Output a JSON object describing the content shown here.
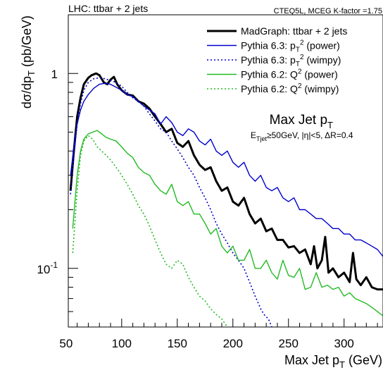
{
  "header": {
    "left": "LHC: ttbar + 2 jets",
    "right": "CTEQ5L, MCEG K-factor =1.75"
  },
  "annotation": {
    "title": "Max Jet p",
    "title_sub": "T",
    "subtitle_prefix": "E",
    "subtitle_sub": "Tjet",
    "subtitle_rest": "≥50GeV, |η|<5, ΔR=0.4"
  },
  "chart_data": {
    "type": "line",
    "xlabel": "Max Jet p",
    "xlabel_sub": "T",
    "xlabel_unit": " (GeV)",
    "ylabel": "dσ/dp",
    "ylabel_sub": "T",
    "ylabel_unit": " (pb/GeV)",
    "xlim": [
      52,
      335
    ],
    "ylim": [
      0.05,
      2.0
    ],
    "yscale": "log",
    "x_ticks": [
      50,
      100,
      150,
      200,
      250,
      300
    ],
    "y_ticks": [
      {
        "value": 1,
        "label": "1",
        "exp": ""
      },
      {
        "value": 0.1,
        "label": "10",
        "exp": "-1"
      }
    ],
    "legend_position": "top-right",
    "series": [
      {
        "name": "MadGraph: ttbar + 2 jets",
        "name_parts": [
          "MadGraph: ttbar + 2 jets"
        ],
        "color": "#000000",
        "width": 3,
        "dash": "",
        "points": [
          [
            54,
            0.25
          ],
          [
            57,
            0.4
          ],
          [
            60,
            0.6
          ],
          [
            63,
            0.75
          ],
          [
            66,
            0.88
          ],
          [
            70,
            0.95
          ],
          [
            73,
            0.98
          ],
          [
            77,
            1.0
          ],
          [
            80,
            0.98
          ],
          [
            84,
            0.9
          ],
          [
            87,
            0.88
          ],
          [
            90,
            0.93
          ],
          [
            93,
            0.96
          ],
          [
            96,
            0.88
          ],
          [
            100,
            0.82
          ],
          [
            105,
            0.78
          ],
          [
            110,
            0.77
          ],
          [
            115,
            0.72
          ],
          [
            120,
            0.7
          ],
          [
            125,
            0.66
          ],
          [
            130,
            0.6
          ],
          [
            135,
            0.55
          ],
          [
            140,
            0.5
          ],
          [
            145,
            0.52
          ],
          [
            150,
            0.44
          ],
          [
            155,
            0.42
          ],
          [
            160,
            0.45
          ],
          [
            165,
            0.38
          ],
          [
            170,
            0.34
          ],
          [
            175,
            0.32
          ],
          [
            180,
            0.33
          ],
          [
            185,
            0.28
          ],
          [
            190,
            0.25
          ],
          [
            195,
            0.26
          ],
          [
            200,
            0.22
          ],
          [
            205,
            0.21
          ],
          [
            210,
            0.23
          ],
          [
            215,
            0.19
          ],
          [
            220,
            0.17
          ],
          [
            225,
            0.18
          ],
          [
            230,
            0.155
          ],
          [
            235,
            0.16
          ],
          [
            240,
            0.14
          ],
          [
            245,
            0.14
          ],
          [
            250,
            0.128
          ],
          [
            255,
            0.13
          ],
          [
            260,
            0.12
          ],
          [
            265,
            0.125
          ],
          [
            270,
            0.105
          ],
          [
            273,
            0.13
          ],
          [
            276,
            0.1
          ],
          [
            280,
            0.11
          ],
          [
            283,
            0.145
          ],
          [
            286,
            0.095
          ],
          [
            290,
            0.1
          ],
          [
            295,
            0.09
          ],
          [
            300,
            0.095
          ],
          [
            305,
            0.085
          ],
          [
            308,
            0.12
          ],
          [
            311,
            0.088
          ],
          [
            315,
            0.082
          ],
          [
            320,
            0.09
          ],
          [
            325,
            0.08
          ],
          [
            330,
            0.078
          ],
          [
            335,
            0.078
          ]
        ]
      },
      {
        "name": "Pythia 6.3: pT2 (power)",
        "name_parts": [
          "Pythia 6.3: p",
          "T",
          "2",
          " (power)"
        ],
        "color": "#0000cc",
        "width": 1.4,
        "dash": "",
        "points": [
          [
            54,
            0.3
          ],
          [
            57,
            0.42
          ],
          [
            60,
            0.55
          ],
          [
            63,
            0.65
          ],
          [
            66,
            0.72
          ],
          [
            70,
            0.78
          ],
          [
            75,
            0.84
          ],
          [
            80,
            0.88
          ],
          [
            85,
            0.89
          ],
          [
            90,
            0.88
          ],
          [
            95,
            0.85
          ],
          [
            100,
            0.82
          ],
          [
            105,
            0.78
          ],
          [
            110,
            0.76
          ],
          [
            115,
            0.72
          ],
          [
            120,
            0.68
          ],
          [
            125,
            0.65
          ],
          [
            130,
            0.62
          ],
          [
            135,
            0.55
          ],
          [
            140,
            0.6
          ],
          [
            145,
            0.56
          ],
          [
            150,
            0.5
          ],
          [
            155,
            0.48
          ],
          [
            160,
            0.52
          ],
          [
            165,
            0.5
          ],
          [
            170,
            0.45
          ],
          [
            175,
            0.43
          ],
          [
            180,
            0.46
          ],
          [
            185,
            0.4
          ],
          [
            190,
            0.38
          ],
          [
            195,
            0.4
          ],
          [
            200,
            0.35
          ],
          [
            205,
            0.33
          ],
          [
            210,
            0.35
          ],
          [
            215,
            0.3
          ],
          [
            220,
            0.28
          ],
          [
            225,
            0.3
          ],
          [
            230,
            0.26
          ],
          [
            235,
            0.25
          ],
          [
            240,
            0.26
          ],
          [
            245,
            0.23
          ],
          [
            250,
            0.22
          ],
          [
            255,
            0.23
          ],
          [
            260,
            0.2
          ],
          [
            265,
            0.2
          ],
          [
            270,
            0.19
          ],
          [
            275,
            0.18
          ],
          [
            280,
            0.18
          ],
          [
            285,
            0.17
          ],
          [
            290,
            0.16
          ],
          [
            295,
            0.16
          ],
          [
            300,
            0.15
          ],
          [
            305,
            0.15
          ],
          [
            310,
            0.14
          ],
          [
            315,
            0.14
          ],
          [
            320,
            0.135
          ],
          [
            325,
            0.13
          ],
          [
            330,
            0.125
          ],
          [
            335,
            0.115
          ]
        ]
      },
      {
        "name": "Pythia 6.3: pT2 (wimpy)",
        "name_parts": [
          "Pythia 6.3: p",
          "T",
          "2",
          " (wimpy)"
        ],
        "color": "#0000cc",
        "width": 1.6,
        "dash": "2,3",
        "points": [
          [
            54,
            0.24
          ],
          [
            57,
            0.38
          ],
          [
            60,
            0.55
          ],
          [
            63,
            0.7
          ],
          [
            66,
            0.82
          ],
          [
            70,
            0.9
          ],
          [
            75,
            0.94
          ],
          [
            80,
            0.95
          ],
          [
            85,
            0.94
          ],
          [
            90,
            0.92
          ],
          [
            95,
            0.9
          ],
          [
            100,
            0.86
          ],
          [
            105,
            0.8
          ],
          [
            110,
            0.75
          ],
          [
            115,
            0.72
          ],
          [
            120,
            0.68
          ],
          [
            125,
            0.62
          ],
          [
            130,
            0.57
          ],
          [
            135,
            0.52
          ],
          [
            140,
            0.5
          ],
          [
            145,
            0.45
          ],
          [
            150,
            0.41
          ],
          [
            155,
            0.37
          ],
          [
            160,
            0.33
          ],
          [
            165,
            0.3
          ],
          [
            170,
            0.26
          ],
          [
            175,
            0.23
          ],
          [
            180,
            0.2
          ],
          [
            185,
            0.17
          ],
          [
            190,
            0.15
          ],
          [
            195,
            0.135
          ],
          [
            200,
            0.12
          ],
          [
            205,
            0.11
          ],
          [
            210,
            0.1
          ],
          [
            215,
            0.085
          ],
          [
            220,
            0.072
          ],
          [
            225,
            0.062
          ],
          [
            228,
            0.058
          ],
          [
            232,
            0.055
          ],
          [
            235,
            0.05
          ]
        ]
      },
      {
        "name": "Pythia 6.2: Q2 (power)",
        "name_parts": [
          "Pythia 6.2: Q",
          "",
          "2",
          " (power)"
        ],
        "color": "#22bb22",
        "width": 1.4,
        "dash": "",
        "points": [
          [
            56,
            0.16
          ],
          [
            60,
            0.3
          ],
          [
            63,
            0.4
          ],
          [
            66,
            0.46
          ],
          [
            70,
            0.49
          ],
          [
            74,
            0.5
          ],
          [
            78,
            0.51
          ],
          [
            82,
            0.49
          ],
          [
            86,
            0.47
          ],
          [
            90,
            0.46
          ],
          [
            95,
            0.45
          ],
          [
            100,
            0.42
          ],
          [
            105,
            0.39
          ],
          [
            110,
            0.37
          ],
          [
            115,
            0.33
          ],
          [
            120,
            0.31
          ],
          [
            125,
            0.3
          ],
          [
            130,
            0.27
          ],
          [
            135,
            0.25
          ],
          [
            140,
            0.24
          ],
          [
            145,
            0.27
          ],
          [
            150,
            0.22
          ],
          [
            155,
            0.21
          ],
          [
            160,
            0.22
          ],
          [
            165,
            0.19
          ],
          [
            170,
            0.19
          ],
          [
            175,
            0.17
          ],
          [
            180,
            0.15
          ],
          [
            185,
            0.16
          ],
          [
            190,
            0.13
          ],
          [
            195,
            0.12
          ],
          [
            200,
            0.13
          ],
          [
            205,
            0.11
          ],
          [
            210,
            0.11
          ],
          [
            215,
            0.125
          ],
          [
            220,
            0.1
          ],
          [
            225,
            0.1
          ],
          [
            230,
            0.11
          ],
          [
            235,
            0.095
          ],
          [
            240,
            0.088
          ],
          [
            245,
            0.11
          ],
          [
            250,
            0.092
          ],
          [
            255,
            0.09
          ],
          [
            260,
            0.1
          ],
          [
            265,
            0.078
          ],
          [
            270,
            0.08
          ],
          [
            275,
            0.095
          ],
          [
            280,
            0.08
          ],
          [
            285,
            0.082
          ],
          [
            290,
            0.078
          ],
          [
            295,
            0.08
          ],
          [
            300,
            0.072
          ],
          [
            305,
            0.075
          ],
          [
            310,
            0.07
          ],
          [
            315,
            0.068
          ],
          [
            320,
            0.066
          ],
          [
            325,
            0.063
          ],
          [
            330,
            0.06
          ],
          [
            335,
            0.057
          ]
        ]
      },
      {
        "name": "Pythia 6.2: Q2 (wimpy)",
        "name_parts": [
          "Pythia 6.2: Q",
          "",
          "2",
          " (wimpy)"
        ],
        "color": "#22bb22",
        "width": 1.6,
        "dash": "2,3",
        "points": [
          [
            56,
            0.12
          ],
          [
            60,
            0.25
          ],
          [
            63,
            0.38
          ],
          [
            66,
            0.45
          ],
          [
            70,
            0.48
          ],
          [
            74,
            0.46
          ],
          [
            78,
            0.42
          ],
          [
            82,
            0.4
          ],
          [
            86,
            0.38
          ],
          [
            90,
            0.36
          ],
          [
            95,
            0.33
          ],
          [
            100,
            0.3
          ],
          [
            105,
            0.27
          ],
          [
            110,
            0.24
          ],
          [
            115,
            0.21
          ],
          [
            120,
            0.19
          ],
          [
            125,
            0.165
          ],
          [
            130,
            0.14
          ],
          [
            135,
            0.12
          ],
          [
            140,
            0.105
          ],
          [
            145,
            0.1
          ],
          [
            150,
            0.11
          ],
          [
            155,
            0.105
          ],
          [
            160,
            0.09
          ],
          [
            165,
            0.08
          ],
          [
            170,
            0.072
          ],
          [
            175,
            0.068
          ],
          [
            180,
            0.062
          ],
          [
            185,
            0.058
          ],
          [
            190,
            0.055
          ],
          [
            195,
            0.05
          ]
        ]
      }
    ]
  }
}
